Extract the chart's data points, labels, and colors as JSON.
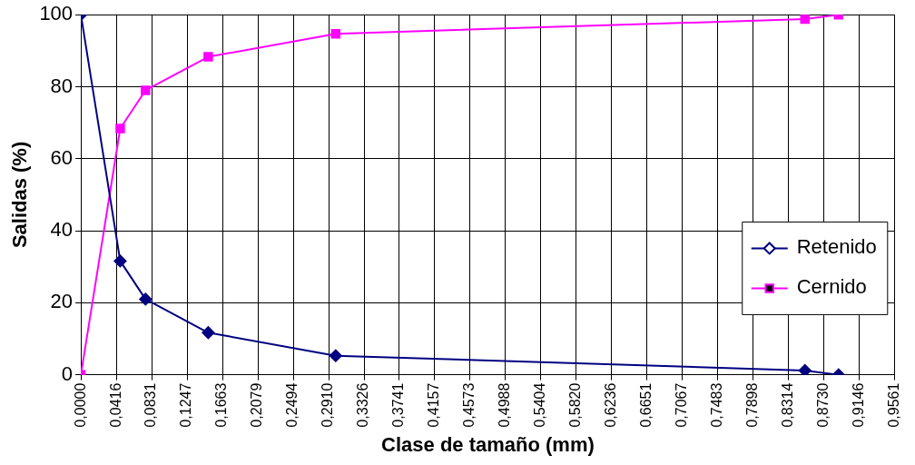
{
  "chart_data": {
    "type": "line",
    "xlabel": "Clase de tamaño (mm)",
    "ylabel": "Salidas (%)",
    "series": [
      {
        "name": "Retenido",
        "color": "#000080",
        "marker": "diamond",
        "x": [
          0,
          0.0462,
          0.0759,
          0.1496,
          0.2993,
          0.8505,
          0.89
        ],
        "values": [
          100,
          31.6,
          21,
          11.7,
          5.3,
          1.2,
          0
        ]
      },
      {
        "name": "Cernido",
        "color": "#ff00ff",
        "marker": "square",
        "x": [
          0,
          0.0462,
          0.0759,
          0.1496,
          0.2993,
          0.8505,
          0.89
        ],
        "values": [
          0,
          68.4,
          79,
          88.3,
          94.7,
          98.8,
          100
        ]
      }
    ],
    "xlim": [
      0,
      0.9561
    ],
    "ylim": [
      0,
      100
    ],
    "yticks": [
      0,
      20,
      40,
      60,
      80,
      100
    ],
    "xticks": [
      {
        "value": 0,
        "label": "0,0000"
      },
      {
        "value": 0.0416,
        "label": "0,0416"
      },
      {
        "value": 0.0831,
        "label": "0,0831"
      },
      {
        "value": 0.1247,
        "label": "0,1247"
      },
      {
        "value": 0.1663,
        "label": "0,1663"
      },
      {
        "value": 0.2079,
        "label": "0,2079"
      },
      {
        "value": 0.2494,
        "label": "0,2494"
      },
      {
        "value": 0.291,
        "label": "0,2910"
      },
      {
        "value": 0.3326,
        "label": "0,3326"
      },
      {
        "value": 0.3741,
        "label": "0,3741"
      },
      {
        "value": 0.4157,
        "label": "0,4157"
      },
      {
        "value": 0.4573,
        "label": "0,4573"
      },
      {
        "value": 0.4988,
        "label": "0,4988"
      },
      {
        "value": 0.5404,
        "label": "0,5404"
      },
      {
        "value": 0.582,
        "label": "0,5820"
      },
      {
        "value": 0.6236,
        "label": "0,6236"
      },
      {
        "value": 0.6651,
        "label": "0,6651"
      },
      {
        "value": 0.7067,
        "label": "0,7067"
      },
      {
        "value": 0.7483,
        "label": "0,7483"
      },
      {
        "value": 0.7898,
        "label": "0,7898"
      },
      {
        "value": 0.8314,
        "label": "0,8314"
      },
      {
        "value": 0.873,
        "label": "0,8730"
      },
      {
        "value": 0.9146,
        "label": "0,9146"
      },
      {
        "value": 0.9561,
        "label": "0,9561"
      }
    ],
    "grid": true,
    "legend": "right",
    "line_style": "solid"
  }
}
